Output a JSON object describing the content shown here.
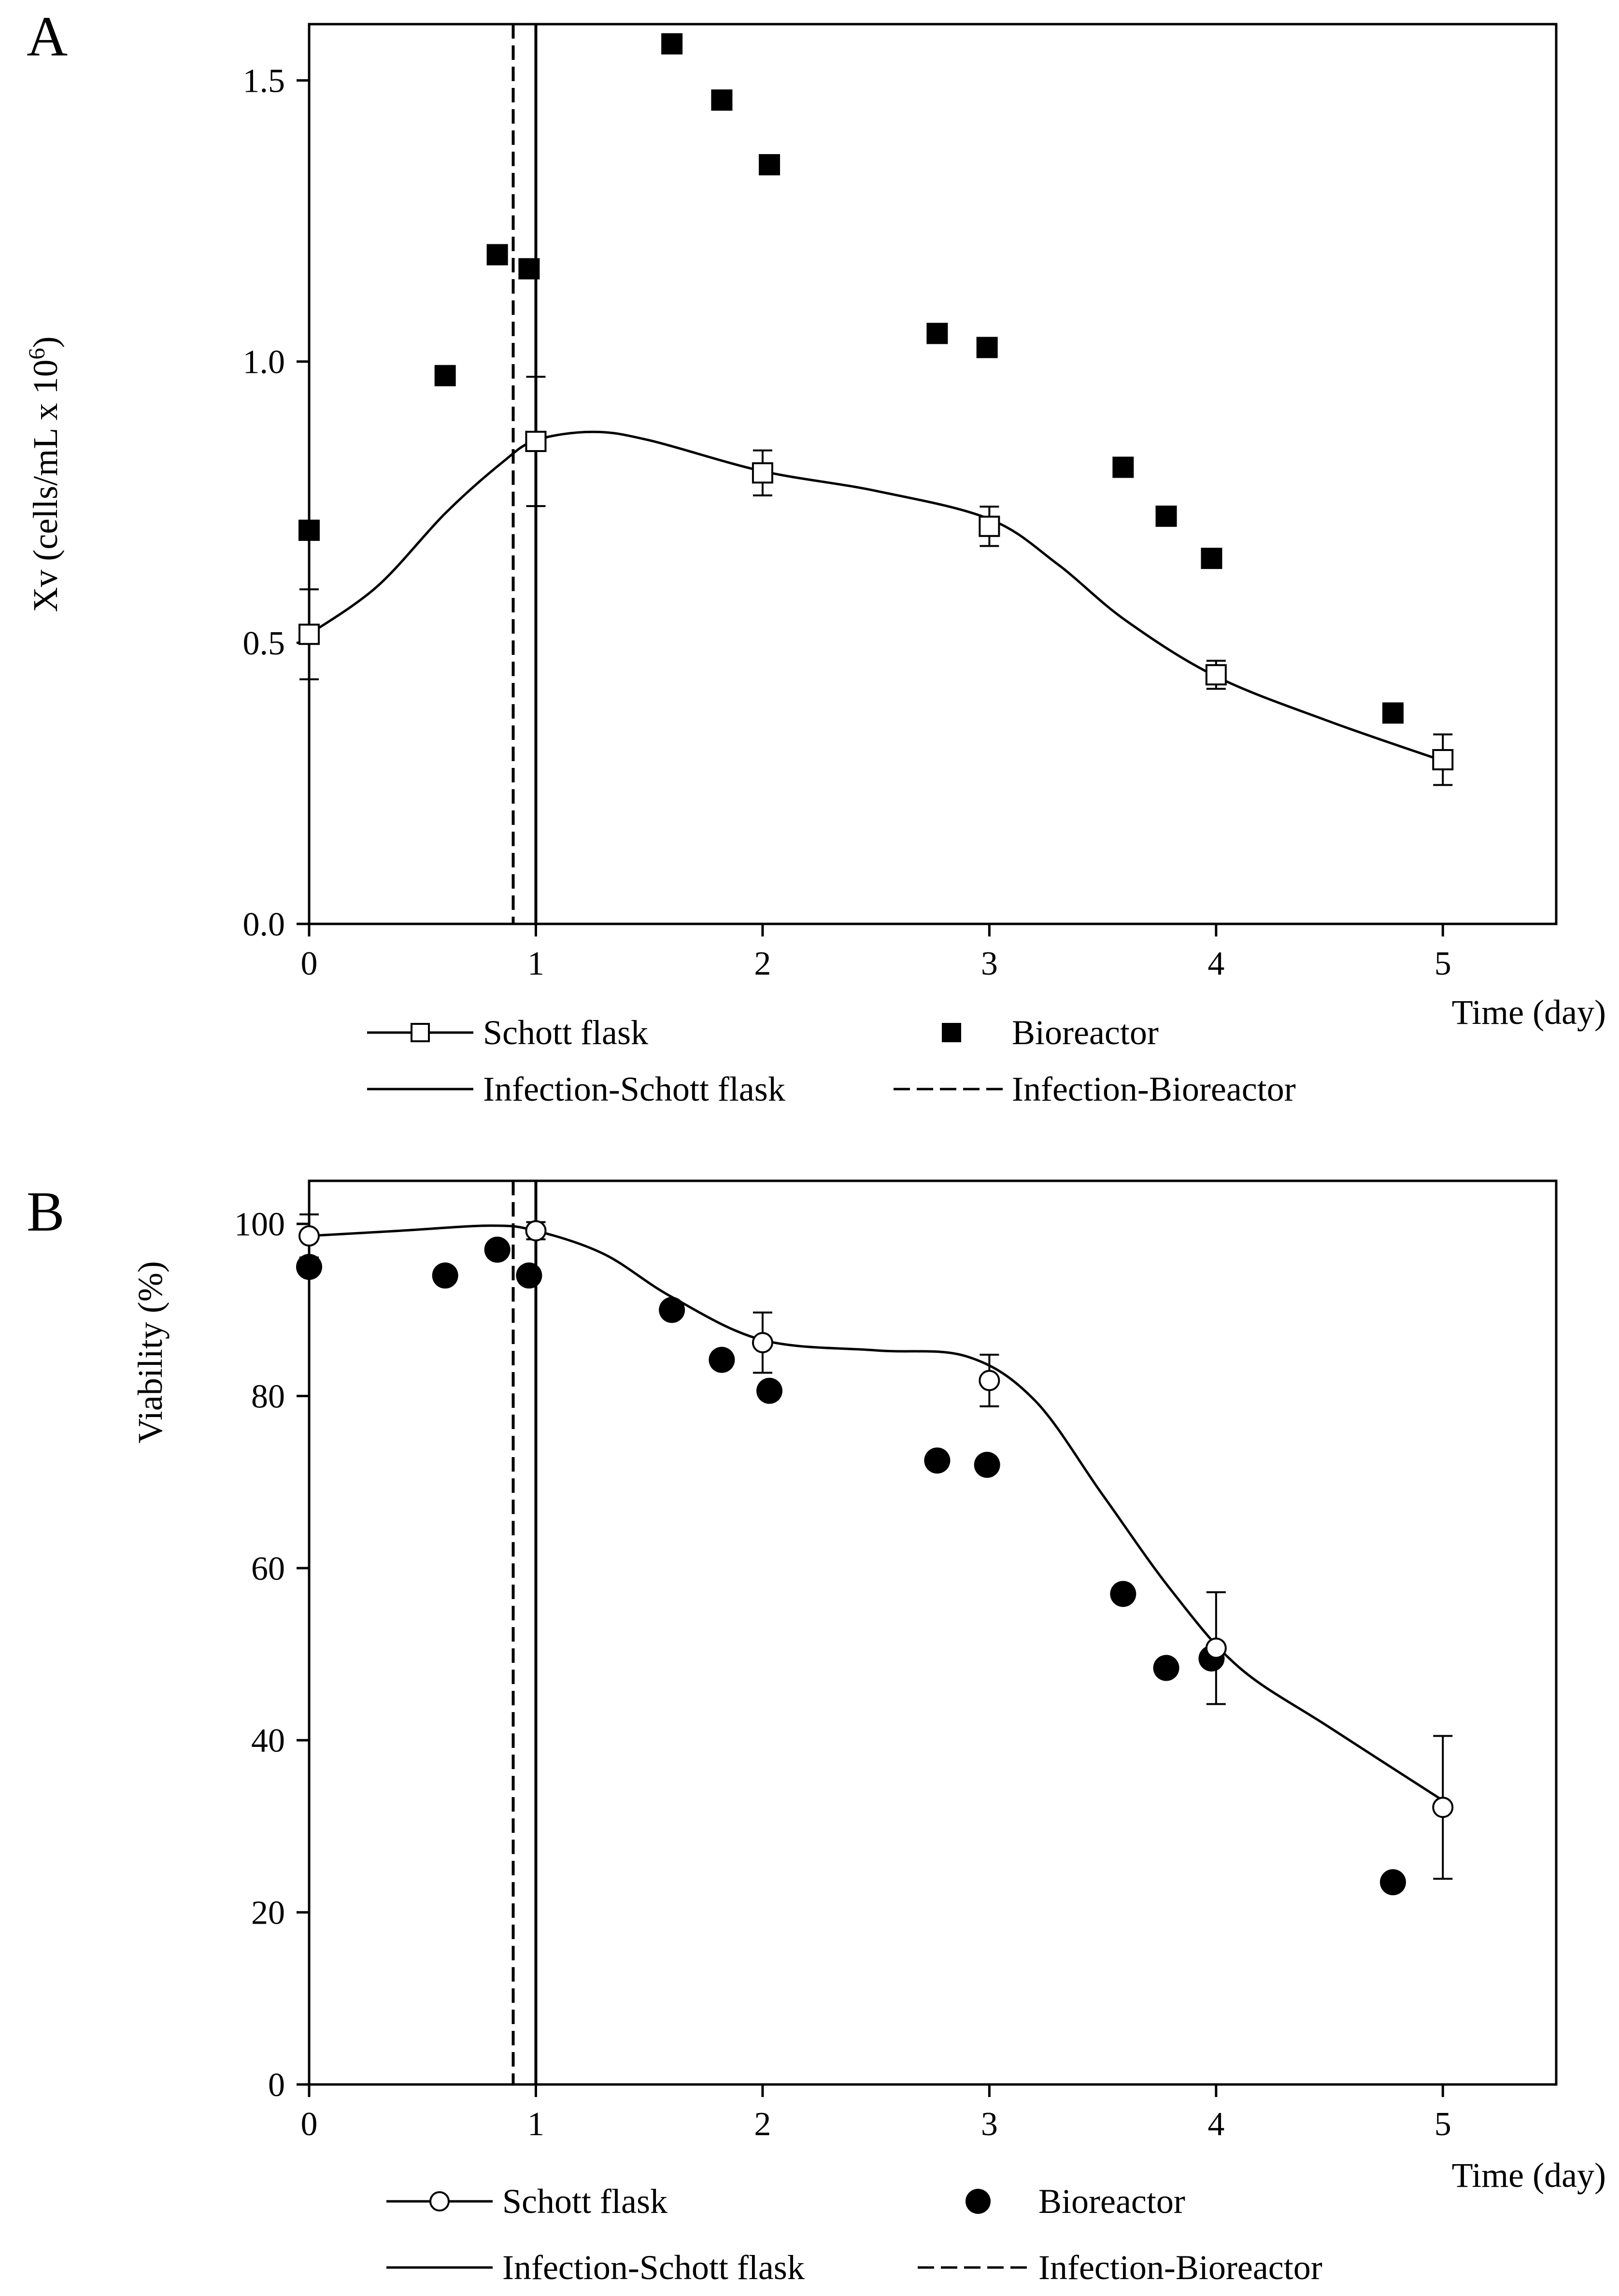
{
  "chart_data": [
    {
      "panel_label": "A",
      "type": "scatter",
      "ylabel": "Xv (cells/mL x 10",
      "ylabel_sup": "6",
      "ylabel_close": ")",
      "xlabel": "Time (day)",
      "xlim": [
        0,
        5.5
      ],
      "ylim": [
        0,
        1.6
      ],
      "x_ticks": [
        0,
        1,
        2,
        3,
        4,
        5
      ],
      "x_tick_labels": [
        "0",
        "1",
        "2",
        "3",
        "4",
        "5"
      ],
      "y_ticks": [
        0,
        0.5,
        1.0,
        1.5
      ],
      "y_tick_labels": [
        "0.0",
        "0.5",
        "1.0",
        "1.5"
      ],
      "infection_schott_flask_day": 1.0,
      "infection_bioreactor_day": 0.9,
      "series": [
        {
          "name": "Schott flask",
          "marker": "open-square",
          "x": [
            0,
            1,
            2,
            3,
            4,
            5
          ],
          "y": [
            0.515,
            0.858,
            0.802,
            0.707,
            0.443,
            0.292
          ],
          "err": [
            0.08,
            0.115,
            0.04,
            0.035,
            0.025,
            0.045
          ],
          "fit_x": [
            0,
            0.3,
            0.6,
            0.85,
            1.0,
            1.25,
            1.5,
            2.0,
            2.5,
            3.0,
            3.3,
            3.6,
            4.0,
            4.5,
            5.0
          ],
          "fit_y": [
            0.515,
            0.6,
            0.73,
            0.82,
            0.86,
            0.875,
            0.86,
            0.805,
            0.77,
            0.72,
            0.64,
            0.54,
            0.44,
            0.36,
            0.29
          ]
        },
        {
          "name": "Bioreactor",
          "marker": "filled-square",
          "x": [
            0,
            0.6,
            0.83,
            0.97,
            1.6,
            1.82,
            2.03,
            2.77,
            2.99,
            3.59,
            3.78,
            3.98,
            4.78
          ],
          "y": [
            0.7,
            0.975,
            1.19,
            1.165,
            1.565,
            1.465,
            1.35,
            1.05,
            1.025,
            0.812,
            0.725,
            0.65,
            0.375
          ]
        }
      ],
      "legend": {
        "schott_flask": "Schott flask",
        "bioreactor": "Bioreactor",
        "infection_schott_flask": "Infection-Schott flask",
        "infection_bioreactor": "Infection-Bioreactor"
      }
    },
    {
      "panel_label": "B",
      "type": "scatter",
      "ylabel": "Viability (%)",
      "xlabel": "Time (day)",
      "xlim": [
        0,
        5.5
      ],
      "ylim": [
        0,
        105
      ],
      "x_ticks": [
        0,
        1,
        2,
        3,
        4,
        5
      ],
      "x_tick_labels": [
        "0",
        "1",
        "2",
        "3",
        "4",
        "5"
      ],
      "y_ticks": [
        0,
        20,
        40,
        60,
        80,
        100
      ],
      "y_tick_labels": [
        "0",
        "20",
        "40",
        "60",
        "80",
        "100"
      ],
      "infection_schott_flask_day": 1.0,
      "infection_bioreactor_day": 0.9,
      "series": [
        {
          "name": "Schott flask",
          "marker": "open-circle",
          "x": [
            0,
            1,
            2,
            3,
            4,
            5
          ],
          "y": [
            98.6,
            99.2,
            86.2,
            81.8,
            50.7,
            32.2
          ],
          "err": [
            2.5,
            1.0,
            3.5,
            3.0,
            6.5,
            8.3
          ],
          "fit_x": [
            0,
            0.4,
            0.8,
            1.0,
            1.3,
            1.6,
            2.0,
            2.5,
            2.9,
            3.2,
            3.5,
            3.8,
            4.1,
            4.5,
            5.0
          ],
          "fit_y": [
            98.6,
            99.2,
            99.8,
            99.2,
            96.5,
            91.5,
            86.5,
            85.3,
            84.6,
            79.5,
            68.5,
            57.5,
            48.5,
            41.5,
            33.0
          ]
        },
        {
          "name": "Bioreactor",
          "marker": "filled-circle",
          "x": [
            0,
            0.6,
            0.83,
            0.97,
            1.6,
            1.82,
            2.03,
            2.77,
            2.99,
            3.59,
            3.78,
            3.98,
            4.78
          ],
          "y": [
            95.0,
            94.0,
            97.0,
            94.0,
            90.0,
            84.2,
            80.6,
            72.5,
            72.0,
            57.0,
            48.4,
            49.5,
            23.5
          ]
        }
      ],
      "legend": {
        "schott_flask": "Schott flask",
        "bioreactor": "Bioreactor",
        "infection_schott_flask": "Infection-Schott flask",
        "infection_bioreactor": "Infection-Bioreactor"
      }
    }
  ]
}
